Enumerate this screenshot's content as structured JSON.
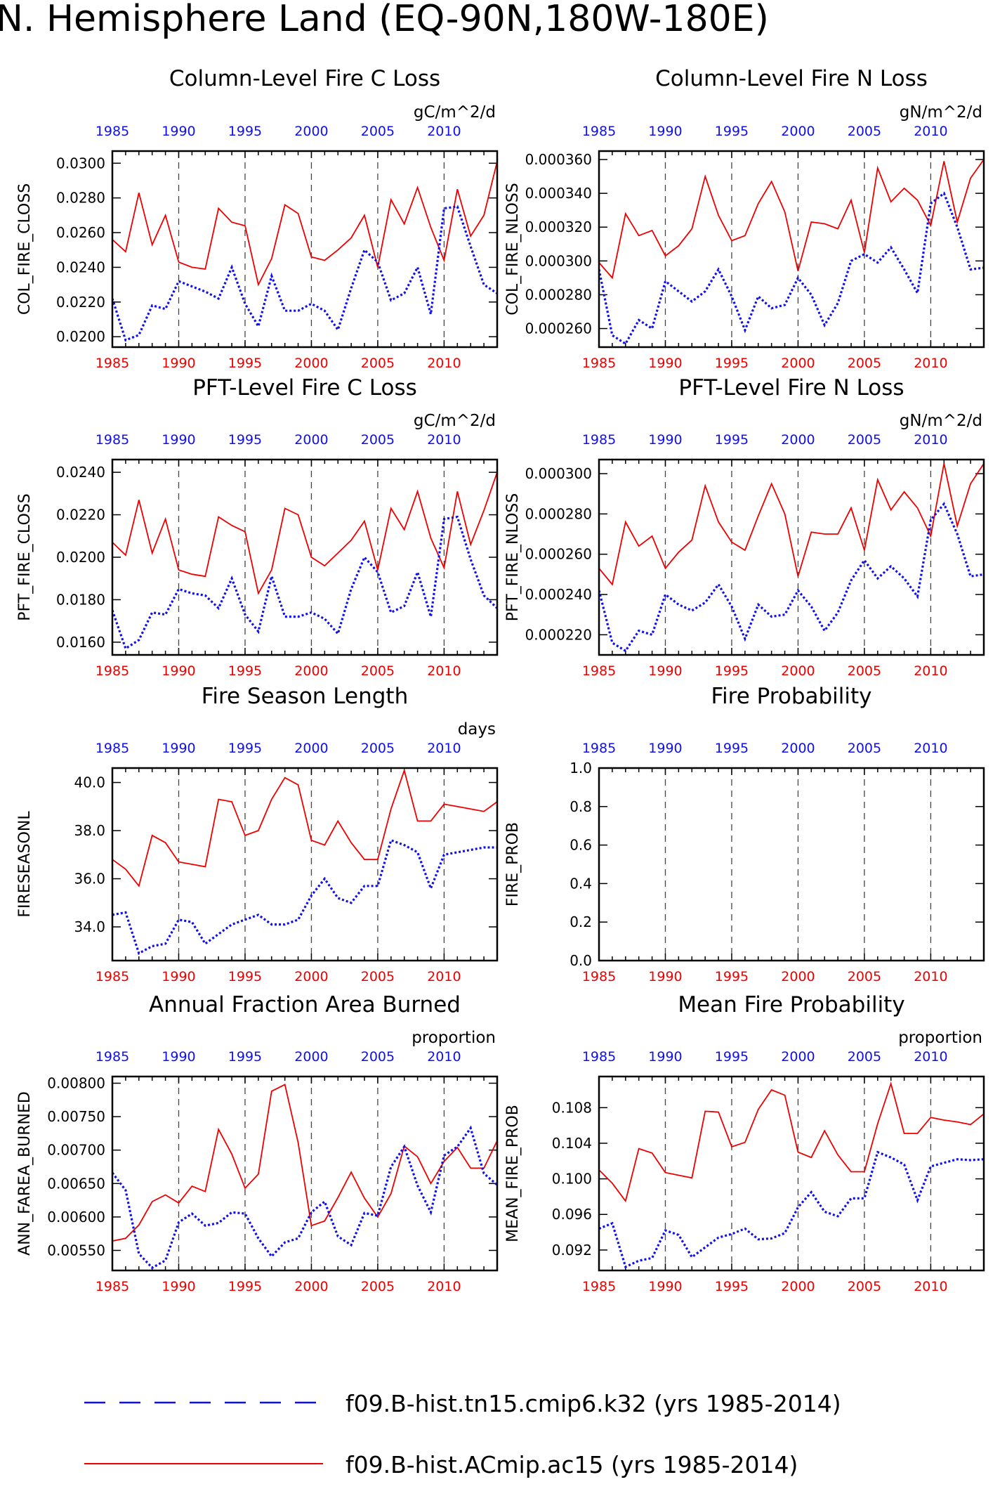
{
  "page_title": "N. Hemisphere Land (EQ-90N,180W-180E)",
  "years": [
    1985,
    1990,
    1995,
    2000,
    2005,
    2010
  ],
  "colors": {
    "series_red": "#ee0000",
    "series_blue": "#1010ee",
    "axis": "#000000"
  },
  "legend": [
    {
      "label": "f09.B-hist.tn15.cmip6.k32 (yrs 1985-2014)",
      "color": "#1010ee",
      "style": "dashed"
    },
    {
      "label": "f09.B-hist.ACmip.ac15 (yrs 1985-2014)",
      "color": "#ee0000",
      "style": "solid"
    }
  ],
  "chart_data": [
    {
      "type": "line",
      "title": "Column-Level Fire C Loss",
      "units": "gC/m^2/d",
      "ylabel": "COL_FIRE_CLOSS",
      "ylim": [
        0.0194,
        0.0307
      ],
      "yticks": [
        "0.0200",
        "0.0220",
        "0.0240",
        "0.0260",
        "0.0280",
        "0.0300"
      ],
      "x": [
        1985,
        1986,
        1987,
        1988,
        1989,
        1990,
        1991,
        1992,
        1993,
        1994,
        1995,
        1996,
        1997,
        1998,
        1999,
        2000,
        2001,
        2002,
        2003,
        2004,
        2005,
        2006,
        2007,
        2008,
        2009,
        2010,
        2011,
        2012,
        2013,
        2014
      ],
      "series": [
        {
          "name": "f09.B-hist.ACmip.ac15",
          "values": [
            0.0256,
            0.0249,
            0.0283,
            0.0253,
            0.027,
            0.0243,
            0.024,
            0.0239,
            0.0274,
            0.0266,
            0.0264,
            0.023,
            0.0245,
            0.0276,
            0.0271,
            0.0246,
            0.0244,
            0.025,
            0.0257,
            0.027,
            0.024,
            0.0279,
            0.0265,
            0.0286,
            0.0263,
            0.0244,
            0.0285,
            0.0258,
            0.027,
            0.0301
          ]
        },
        {
          "name": "f09.B-hist.tn15.cmip6.k32",
          "values": [
            0.0222,
            0.0198,
            0.0201,
            0.0218,
            0.0216,
            0.0232,
            0.0229,
            0.0226,
            0.0222,
            0.024,
            0.0219,
            0.0206,
            0.0235,
            0.0215,
            0.0215,
            0.0219,
            0.0215,
            0.0204,
            0.0228,
            0.025,
            0.0243,
            0.0221,
            0.0225,
            0.024,
            0.0213,
            0.0274,
            0.0275,
            0.0252,
            0.023,
            0.0225
          ]
        }
      ]
    },
    {
      "type": "line",
      "title": "Column-Level Fire N Loss",
      "units": "gN/m^2/d",
      "ylabel": "COL_FIRE_NLOSS",
      "ylim": [
        0.000249,
        0.000365
      ],
      "yticks": [
        "0.000260",
        "0.000280",
        "0.000300",
        "0.000320",
        "0.000340",
        "0.000360"
      ],
      "x": [
        1985,
        1986,
        1987,
        1988,
        1989,
        1990,
        1991,
        1992,
        1993,
        1994,
        1995,
        1996,
        1997,
        1998,
        1999,
        2000,
        2001,
        2002,
        2003,
        2004,
        2005,
        2006,
        2007,
        2008,
        2009,
        2010,
        2011,
        2012,
        2013,
        2014
      ],
      "series": [
        {
          "name": "f09.B-hist.ACmip.ac15",
          "values": [
            0.000299,
            0.00029,
            0.000328,
            0.000315,
            0.000318,
            0.000303,
            0.000309,
            0.000319,
            0.00035,
            0.000327,
            0.000312,
            0.000315,
            0.000334,
            0.000347,
            0.000329,
            0.000294,
            0.000323,
            0.000322,
            0.000319,
            0.000336,
            0.000305,
            0.000355,
            0.000335,
            0.000343,
            0.000336,
            0.000321,
            0.000359,
            0.000323,
            0.000349,
            0.00036
          ]
        },
        {
          "name": "f09.B-hist.tn15.cmip6.k32",
          "values": [
            0.000295,
            0.000256,
            0.000251,
            0.000265,
            0.00026,
            0.000288,
            0.000282,
            0.000276,
            0.000282,
            0.000295,
            0.000279,
            0.000259,
            0.000279,
            0.000272,
            0.000274,
            0.00029,
            0.00028,
            0.000262,
            0.000275,
            0.0003,
            0.000304,
            0.000299,
            0.000308,
            0.000295,
            0.000281,
            0.000334,
            0.00034,
            0.00032,
            0.000295,
            0.000296
          ]
        }
      ]
    },
    {
      "type": "line",
      "title": "PFT-Level Fire C Loss",
      "units": "gC/m^2/d",
      "ylabel": "PFT_FIRE_CLOSS",
      "ylim": [
        0.0154,
        0.0246
      ],
      "yticks": [
        "0.0160",
        "0.0180",
        "0.0200",
        "0.0220",
        "0.0240"
      ],
      "x": [
        1985,
        1986,
        1987,
        1988,
        1989,
        1990,
        1991,
        1992,
        1993,
        1994,
        1995,
        1996,
        1997,
        1998,
        1999,
        2000,
        2001,
        2002,
        2003,
        2004,
        2005,
        2006,
        2007,
        2008,
        2009,
        2010,
        2011,
        2012,
        2013,
        2014
      ],
      "series": [
        {
          "name": "f09.B-hist.ACmip.ac15",
          "values": [
            0.0207,
            0.0201,
            0.0227,
            0.0202,
            0.0218,
            0.0194,
            0.0192,
            0.0191,
            0.0219,
            0.0215,
            0.0212,
            0.0183,
            0.0194,
            0.0223,
            0.022,
            0.02,
            0.0196,
            0.0202,
            0.0208,
            0.0217,
            0.0194,
            0.0223,
            0.0213,
            0.0231,
            0.0209,
            0.0195,
            0.0231,
            0.0206,
            0.0222,
            0.024
          ]
        },
        {
          "name": "f09.B-hist.tn15.cmip6.k32",
          "values": [
            0.0175,
            0.0157,
            0.0161,
            0.0174,
            0.0173,
            0.0185,
            0.0183,
            0.0182,
            0.0176,
            0.019,
            0.0173,
            0.0165,
            0.0191,
            0.0172,
            0.0172,
            0.0174,
            0.0171,
            0.0164,
            0.0185,
            0.02,
            0.0193,
            0.0174,
            0.0177,
            0.0193,
            0.0172,
            0.0218,
            0.0219,
            0.0199,
            0.0182,
            0.0176
          ]
        }
      ]
    },
    {
      "type": "line",
      "title": "PFT-Level Fire N Loss",
      "units": "gN/m^2/d",
      "ylabel": "PFT_FIRE_NLOSS",
      "ylim": [
        0.00021,
        0.000307
      ],
      "yticks": [
        "0.000220",
        "0.000240",
        "0.000260",
        "0.000280",
        "0.000300"
      ],
      "x": [
        1985,
        1986,
        1987,
        1988,
        1989,
        1990,
        1991,
        1992,
        1993,
        1994,
        1995,
        1996,
        1997,
        1998,
        1999,
        2000,
        2001,
        2002,
        2003,
        2004,
        2005,
        2006,
        2007,
        2008,
        2009,
        2010,
        2011,
        2012,
        2013,
        2014
      ],
      "series": [
        {
          "name": "f09.B-hist.ACmip.ac15",
          "values": [
            0.000253,
            0.000245,
            0.000276,
            0.000264,
            0.000269,
            0.000253,
            0.000261,
            0.000267,
            0.000294,
            0.000276,
            0.000266,
            0.000262,
            0.000279,
            0.000295,
            0.00028,
            0.000249,
            0.000271,
            0.00027,
            0.00027,
            0.000283,
            0.000262,
            0.000297,
            0.000282,
            0.000291,
            0.000283,
            0.000269,
            0.000305,
            0.000274,
            0.000295,
            0.000305
          ]
        },
        {
          "name": "f09.B-hist.tn15.cmip6.k32",
          "values": [
            0.000242,
            0.000216,
            0.000212,
            0.000222,
            0.00022,
            0.00024,
            0.000235,
            0.000232,
            0.000236,
            0.000245,
            0.000234,
            0.000218,
            0.000235,
            0.000229,
            0.00023,
            0.000242,
            0.000234,
            0.000222,
            0.000231,
            0.000247,
            0.000257,
            0.000248,
            0.000254,
            0.000248,
            0.000239,
            0.000277,
            0.000285,
            0.00027,
            0.000249,
            0.00025
          ]
        }
      ]
    },
    {
      "type": "line",
      "title": "Fire Season Length",
      "units": "days",
      "ylabel": "FIRESEASONL",
      "ylim": [
        32.6,
        40.6
      ],
      "yticks": [
        "34.0",
        "36.0",
        "38.0",
        "40.0"
      ],
      "x": [
        1985,
        1986,
        1987,
        1988,
        1989,
        1990,
        1991,
        1992,
        1993,
        1994,
        1995,
        1996,
        1997,
        1998,
        1999,
        2000,
        2001,
        2002,
        2003,
        2004,
        2005,
        2006,
        2007,
        2008,
        2009,
        2010,
        2011,
        2012,
        2013,
        2014
      ],
      "series": [
        {
          "name": "f09.B-hist.ACmip.ac15",
          "values": [
            36.8,
            36.4,
            35.7,
            37.8,
            37.5,
            36.7,
            36.6,
            36.5,
            39.3,
            39.2,
            37.8,
            38.0,
            39.3,
            40.2,
            39.9,
            37.6,
            37.4,
            38.4,
            37.5,
            36.8,
            36.8,
            38.9,
            40.5,
            38.4,
            38.4,
            39.1,
            39.0,
            38.9,
            38.8,
            39.2
          ]
        },
        {
          "name": "f09.B-hist.tn15.cmip6.k32",
          "values": [
            34.5,
            34.6,
            32.9,
            33.2,
            33.3,
            34.3,
            34.2,
            33.3,
            33.7,
            34.1,
            34.3,
            34.5,
            34.1,
            34.1,
            34.3,
            35.3,
            36.0,
            35.2,
            35.0,
            35.7,
            35.7,
            37.6,
            37.4,
            37.1,
            35.6,
            37.0,
            37.1,
            37.2,
            37.3,
            37.3
          ]
        }
      ]
    },
    {
      "type": "line",
      "title": "Fire Probability",
      "units": "",
      "ylabel": "FIRE_PROB",
      "ylim": [
        0.0,
        1.0
      ],
      "yticks": [
        "0.0",
        "0.2",
        "0.4",
        "0.6",
        "0.8",
        "1.0"
      ],
      "x": [],
      "series": []
    },
    {
      "type": "line",
      "title": "Annual Fraction Area Burned",
      "units": "proportion",
      "ylabel": "ANN_FAREA_BURNED",
      "ylim": [
        0.0052,
        0.0081
      ],
      "yticks": [
        "0.00550",
        "0.00600",
        "0.00650",
        "0.00700",
        "0.00750",
        "0.00800"
      ],
      "x": [
        1985,
        1986,
        1987,
        1988,
        1989,
        1990,
        1991,
        1992,
        1993,
        1994,
        1995,
        1996,
        1997,
        1998,
        1999,
        2000,
        2001,
        2002,
        2003,
        2004,
        2005,
        2006,
        2007,
        2008,
        2009,
        2010,
        2011,
        2012,
        2013,
        2014
      ],
      "series": [
        {
          "name": "f09.B-hist.ACmip.ac15",
          "values": [
            0.00564,
            0.00568,
            0.00588,
            0.00623,
            0.00633,
            0.00621,
            0.00646,
            0.00638,
            0.00731,
            0.00694,
            0.00643,
            0.00664,
            0.00788,
            0.00798,
            0.00711,
            0.00587,
            0.00594,
            0.00629,
            0.00667,
            0.00628,
            0.006,
            0.00635,
            0.00706,
            0.0069,
            0.0065,
            0.00683,
            0.00704,
            0.00673,
            0.00673,
            0.00714
          ]
        },
        {
          "name": "f09.B-hist.tn15.cmip6.k32",
          "values": [
            0.00666,
            0.0064,
            0.00545,
            0.00524,
            0.00535,
            0.00592,
            0.00605,
            0.00587,
            0.00591,
            0.00607,
            0.00605,
            0.00568,
            0.00541,
            0.00562,
            0.00568,
            0.00607,
            0.00623,
            0.00571,
            0.00558,
            0.00606,
            0.00602,
            0.00675,
            0.00705,
            0.00647,
            0.00607,
            0.00692,
            0.00705,
            0.00733,
            0.00665,
            0.00648
          ]
        }
      ]
    },
    {
      "type": "line",
      "title": "Mean Fire Probability",
      "units": "proportion",
      "ylabel": "MEAN_FIRE_PROB",
      "ylim": [
        0.0897,
        0.1115
      ],
      "yticks": [
        "0.092",
        "0.096",
        "0.100",
        "0.104",
        "0.108"
      ],
      "x": [
        1985,
        1986,
        1987,
        1988,
        1989,
        1990,
        1991,
        1992,
        1993,
        1994,
        1995,
        1996,
        1997,
        1998,
        1999,
        2000,
        2001,
        2002,
        2003,
        2004,
        2005,
        2006,
        2007,
        2008,
        2009,
        2010,
        2011,
        2012,
        2013,
        2014
      ],
      "series": [
        {
          "name": "f09.B-hist.ACmip.ac15",
          "values": [
            0.101,
            0.0995,
            0.0975,
            0.1034,
            0.1029,
            0.1007,
            0.1004,
            0.1001,
            0.1076,
            0.1075,
            0.1036,
            0.1041,
            0.1078,
            0.11,
            0.1094,
            0.103,
            0.1024,
            0.1054,
            0.1027,
            0.1008,
            0.1008,
            0.1062,
            0.1107,
            0.1051,
            0.1051,
            0.1069,
            0.1066,
            0.1064,
            0.1061,
            0.1073
          ]
        },
        {
          "name": "f09.B-hist.tn15.cmip6.k32",
          "values": [
            0.0944,
            0.095,
            0.0901,
            0.0908,
            0.0911,
            0.0942,
            0.0937,
            0.0912,
            0.0923,
            0.0934,
            0.0938,
            0.0944,
            0.0932,
            0.0933,
            0.0939,
            0.0968,
            0.0985,
            0.0963,
            0.0958,
            0.0978,
            0.0978,
            0.103,
            0.1024,
            0.1016,
            0.0976,
            0.1014,
            0.1018,
            0.1022,
            0.1021,
            0.1022
          ]
        }
      ]
    }
  ]
}
